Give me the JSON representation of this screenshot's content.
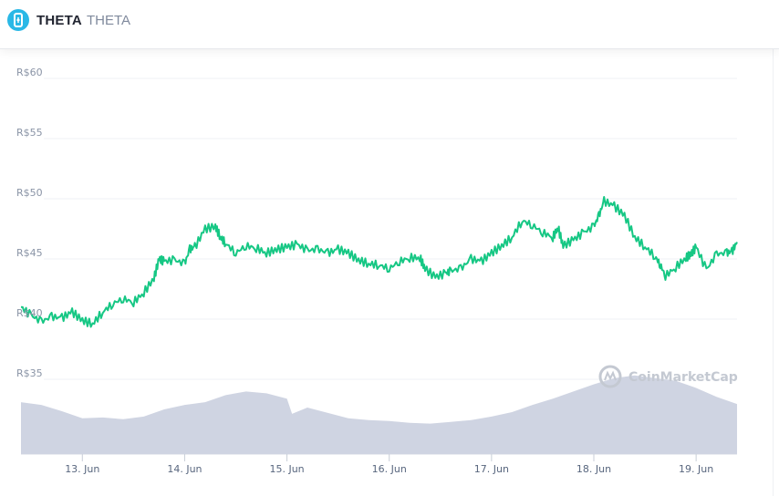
{
  "header": {
    "coin_name": "THETA",
    "coin_symbol": "THETA",
    "logo_icon": "theta-logo-icon"
  },
  "watermark": {
    "text": "CoinMarketCap",
    "icon": "coinmarketcap-logo-icon"
  },
  "colors": {
    "price_line": "#16c784",
    "volume": "#cfd4e2",
    "grid": "#eff2f5",
    "brand": "#2ab8e6"
  },
  "chart_data": {
    "type": "line",
    "title": "",
    "xlabel": "",
    "ylabel": "",
    "currency_prefix": "R$",
    "ylim": [
      35,
      60
    ],
    "yticks": [
      "R$35",
      "R$40",
      "R$45",
      "R$50",
      "R$55",
      "R$60"
    ],
    "yticks_values": [
      35,
      40,
      45,
      50,
      55,
      60
    ],
    "xticks": [
      "13. Jun",
      "14. Jun",
      "15. Jun",
      "16. Jun",
      "17. Jun",
      "18. Jun",
      "19. Jun"
    ],
    "xticks_values": [
      13,
      14,
      15,
      16,
      17,
      18,
      19
    ],
    "xlim": [
      12.4,
      19.4
    ],
    "grid": true,
    "series": [
      {
        "kind": "price",
        "x": [
          12.4,
          12.5,
          12.6,
          12.7,
          12.8,
          12.9,
          13.0,
          13.1,
          13.2,
          13.3,
          13.4,
          13.5,
          13.6,
          13.7,
          13.75,
          13.8,
          13.9,
          14.0,
          14.05,
          14.1,
          14.2,
          14.3,
          14.35,
          14.4,
          14.5,
          14.6,
          14.7,
          14.8,
          14.9,
          15.0,
          15.1,
          15.2,
          15.3,
          15.4,
          15.5,
          15.6,
          15.7,
          15.8,
          15.9,
          16.0,
          16.1,
          16.2,
          16.3,
          16.35,
          16.45,
          16.55,
          16.6,
          16.7,
          16.8,
          16.9,
          17.0,
          17.1,
          17.2,
          17.3,
          17.4,
          17.5,
          17.6,
          17.65,
          17.7,
          17.8,
          17.9,
          18.0,
          18.05,
          18.1,
          18.2,
          18.3,
          18.4,
          18.5,
          18.6,
          18.65,
          18.7,
          18.8,
          18.9,
          18.95,
          19.0,
          19.1,
          19.2,
          19.3,
          19.35,
          19.4
        ],
        "y": [
          41.0,
          40.3,
          39.8,
          40.2,
          40.1,
          40.6,
          39.9,
          39.6,
          40.6,
          41.3,
          41.7,
          41.4,
          42.2,
          43.4,
          45.0,
          44.8,
          44.9,
          44.6,
          45.8,
          46.0,
          47.5,
          47.7,
          46.8,
          46.3,
          45.5,
          46.1,
          45.9,
          45.5,
          45.8,
          46.0,
          46.2,
          45.7,
          45.8,
          45.5,
          45.8,
          45.5,
          44.9,
          44.6,
          44.5,
          44.2,
          44.8,
          45.1,
          45.1,
          44.2,
          43.5,
          43.8,
          44.0,
          44.2,
          45.0,
          44.8,
          45.5,
          46.1,
          46.8,
          48.2,
          47.8,
          47.2,
          46.8,
          47.6,
          46.1,
          46.6,
          47.2,
          47.7,
          48.6,
          49.8,
          49.4,
          48.6,
          46.8,
          46.0,
          45.2,
          44.5,
          43.6,
          44.3,
          45.1,
          45.4,
          46.0,
          44.1,
          45.4,
          45.5,
          45.6,
          46.4
        ]
      },
      {
        "kind": "volume",
        "x": [
          12.4,
          12.6,
          12.8,
          13.0,
          13.2,
          13.4,
          13.6,
          13.8,
          14.0,
          14.2,
          14.4,
          14.6,
          14.8,
          15.0,
          15.05,
          15.2,
          15.4,
          15.6,
          15.8,
          16.0,
          16.2,
          16.4,
          16.6,
          16.8,
          17.0,
          17.2,
          17.4,
          17.6,
          17.8,
          18.0,
          18.2,
          18.4,
          18.6,
          18.8,
          19.0,
          19.2,
          19.4
        ],
        "y": [
          0.58,
          0.55,
          0.48,
          0.4,
          0.41,
          0.39,
          0.42,
          0.5,
          0.55,
          0.58,
          0.66,
          0.7,
          0.68,
          0.62,
          0.45,
          0.52,
          0.46,
          0.4,
          0.38,
          0.37,
          0.35,
          0.34,
          0.36,
          0.38,
          0.42,
          0.47,
          0.55,
          0.62,
          0.7,
          0.78,
          0.85,
          0.88,
          0.85,
          0.82,
          0.74,
          0.64,
          0.56
        ]
      }
    ]
  }
}
